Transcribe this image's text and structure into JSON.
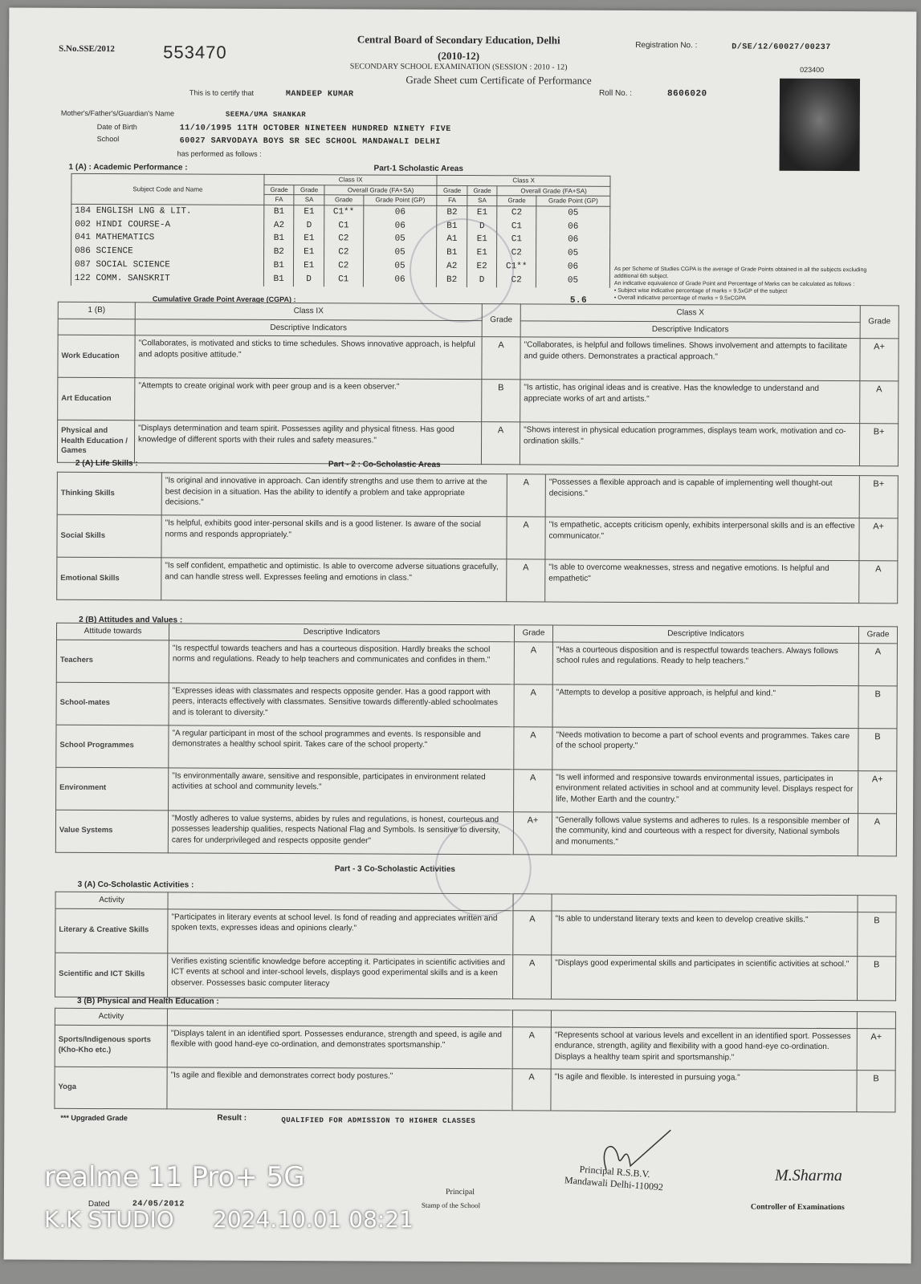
{
  "header": {
    "serial_label": "S.No.SSE/2012",
    "serial_number": "553470",
    "board_name": "Central Board of Secondary Education, Delhi",
    "exam_session_hi": "(2010-12)",
    "exam_name": "SECONDARY SCHOOL EXAMINATION (SESSION : 2010 - 12)",
    "doc_title": "Grade Sheet cum Certificate of Performance",
    "registration_label": "Registration No. :",
    "registration_no": "D/SE/12/60027/00237",
    "small_code": "023400",
    "certify_label": "This is to certify that",
    "student_name": "MANDEEP KUMAR",
    "roll_label": "Roll No. :",
    "roll_no": "8606020",
    "guardian_label": "Mother's/Father's/Guardian's Name",
    "guardian_name": "SEEMA/UMA SHANKAR",
    "dob_label": "Date of Birth",
    "dob": "11/10/1995  11TH OCTOBER NINETEEN HUNDRED NINETY FIVE",
    "school_label": "School",
    "school": "60027  SARVODAYA BOYS SR SEC SCHOOL MANDAWALI DELHI",
    "performed_label": "has performed as follows :"
  },
  "scholastic": {
    "section_label": "1 (A) : Academic Performance :",
    "part_label": "Part-1 Scholastic Areas",
    "subject_header": "Subject Code and Name",
    "class_ix": "Class IX",
    "class_x": "Class X",
    "grade_label": "Grade",
    "fa": "FA",
    "sa": "SA",
    "overall": "Overall Grade (FA+SA)",
    "grade": "Grade",
    "gp": "Grade Point (GP)",
    "rows": [
      {
        "subject": "184 ENGLISH LNG & LIT.",
        "ix": [
          "B1",
          "E1",
          "C1**",
          "06"
        ],
        "x": [
          "B2",
          "E1",
          "C2",
          "05"
        ]
      },
      {
        "subject": "002 HINDI COURSE-A",
        "ix": [
          "A2",
          "D",
          "C1",
          "06"
        ],
        "x": [
          "B1",
          "D",
          "C1",
          "06"
        ]
      },
      {
        "subject": "041 MATHEMATICS",
        "ix": [
          "B1",
          "E1",
          "C2",
          "05"
        ],
        "x": [
          "A1",
          "E1",
          "C1",
          "06"
        ]
      },
      {
        "subject": "086 SCIENCE",
        "ix": [
          "B2",
          "E1",
          "C2",
          "05"
        ],
        "x": [
          "B1",
          "E1",
          "C2",
          "05"
        ]
      },
      {
        "subject": "087 SOCIAL SCIENCE",
        "ix": [
          "B1",
          "E1",
          "C2",
          "05"
        ],
        "x": [
          "A2",
          "E2",
          "C1**",
          "06"
        ]
      },
      {
        "subject": "122 COMM. SANSKRIT",
        "ix": [
          "B1",
          "D",
          "C1",
          "06"
        ],
        "x": [
          "B2",
          "D",
          "C2",
          "05"
        ]
      }
    ],
    "cgpa_label": "Cumulative Grade Point Average (CGPA) :",
    "cgpa": "5.6",
    "notes": [
      "As per Scheme of Studies CGPA is the average of Grade Points obtained in all the subjects excluding additional 6th subject.",
      "An indicative equivalence of Grade Point and Percentage of Marks can be calculated as follows :",
      "• Subject wise indicative percentage of marks = 9.5xGP of the subject",
      "• Overall indicative percentage of marks = 9.5xCGPA"
    ]
  },
  "section1b": {
    "label": "1 (B)",
    "class_ix": "Class IX",
    "class_x": "Class X",
    "desc": "Descriptive Indicators",
    "grade": "Grade",
    "rows": [
      {
        "area": "Work Education",
        "ix": "\"Collaborates, is motivated and sticks to time schedules. Shows innovative approach, is helpful and adopts positive attitude.\"",
        "gix": "A",
        "x": "\"Collaborates, is helpful and follows timelines. Shows involvement and attempts to facilitate and guide others. Demonstrates a practical approach.\"",
        "gx": "A+"
      },
      {
        "area": "Art Education",
        "ix": "\"Attempts to create original work with peer group and is a keen observer.\"",
        "gix": "B",
        "x": "\"Is artistic, has original ideas and is creative. Has the knowledge to understand and appreciate works of art and artists.\"",
        "gx": "A"
      },
      {
        "area": "Physical and Health Education / Games",
        "ix": "\"Displays determination and team spirit. Possesses agility and physical fitness. Has good knowledge of different sports with their rules and safety measures.\"",
        "gix": "A",
        "x": "\"Shows interest in physical education programmes, displays team work, motivation and co-ordination skills.\"",
        "gx": "B+"
      }
    ]
  },
  "part2": {
    "title": "Part - 2 : Co-Scholastic Areas",
    "life_label": "2 (A) Life Skills :",
    "rows": [
      {
        "area": "Thinking Skills",
        "ix": "\"Is original and innovative in approach. Can identify strengths and use them to arrive at the best decision in a situation. Has the ability to identify a problem and take appropriate decisions.\"",
        "gix": "A",
        "x": "\"Possesses a flexible approach and is capable of implementing well thought-out decisions.\"",
        "gx": "B+"
      },
      {
        "area": "Social Skills",
        "ix": "\"Is helpful, exhibits good inter-personal skills and is a good listener. Is aware of the social norms and responds appropriately.\"",
        "gix": "A",
        "x": "\"Is empathetic, accepts criticism openly, exhibits interpersonal skills and is an effective communicator.\"",
        "gx": "A+"
      },
      {
        "area": "Emotional Skills",
        "ix": "\"Is self confident, empathetic and optimistic. Is able to overcome adverse situations gracefully, and can handle stress well. Expresses feeling and emotions in class.\"",
        "gix": "A",
        "x": "\"Is able to overcome weaknesses, stress and negative emotions. Is helpful and empathetic\"",
        "gx": "A"
      }
    ]
  },
  "attitudes": {
    "label": "2 (B) Attitudes and Values :",
    "col_head": "Attitude towards",
    "desc": "Descriptive Indicators",
    "grade": "Grade",
    "rows": [
      {
        "area": "Teachers",
        "ix": "\"Is respectful towards teachers and has a courteous disposition. Hardly breaks the school norms and regulations. Ready to help teachers and communicates and confides in them.\"",
        "gix": "A",
        "x": "\"Has a courteous disposition and is respectful towards teachers. Always follows school rules and regulations. Ready to help teachers.\"",
        "gx": "A"
      },
      {
        "area": "School-mates",
        "ix": "\"Expresses ideas with classmates and respects opposite gender. Has a good rapport with peers, interacts effectively with classmates. Sensitive towards differently-abled schoolmates and is tolerant to diversity.\"",
        "gix": "A",
        "x": "\"Attempts to develop a positive approach, is helpful and kind.\"",
        "gx": "B"
      },
      {
        "area": "School Programmes",
        "ix": "\"A regular participant in most of the school programmes and events. Is responsible and demonstrates a healthy school spirit. Takes care of the school property.\"",
        "gix": "A",
        "x": "\"Needs motivation to become a part of school events and programmes. Takes care of the school property.\"",
        "gx": "B"
      },
      {
        "area": "Environment",
        "ix": "\"Is environmentally aware, sensitive and responsible, participates in environment related activities at school and community levels.\"",
        "gix": "A",
        "x": "\"Is well informed and responsive towards environmental issues, participates in environment related activities in school and at community level. Displays respect for life, Mother Earth and the country.\"",
        "gx": "A+"
      },
      {
        "area": "Value Systems",
        "ix": "\"Mostly adheres to value systems, abides by rules and regulations, is honest, courteous and possesses leadership qualities, respects National Flag and Symbols. Is sensitive to diversity, cares for underprivileged and respects opposite gender\"",
        "gix": "A+",
        "x": "\"Generally follows value systems and adheres to rules. Is a responsible member of the community, kind and courteous with a respect for diversity, National symbols and monuments.\"",
        "gx": "A"
      }
    ]
  },
  "part3": {
    "title": "Part - 3 Co-Scholastic Activities",
    "a_label": "3 (A) Co-Scholastic Activities :",
    "activity": "Activity",
    "a_rows": [
      {
        "area": "Literary & Creative Skills",
        "ix": "\"Participates in literary events at school level. Is fond of reading and appreciates written and spoken texts, expresses ideas and opinions clearly.\"",
        "gix": "A",
        "x": "\"Is able to understand literary texts and keen to develop creative skills.\"",
        "gx": "B"
      },
      {
        "area": "Scientific and ICT Skills",
        "ix": "Verifies existing scientific knowledge before accepting it. Participates in scientific activities and ICT events at school and inter-school levels, displays good experimental skills and is a keen observer. Possesses basic computer literacy",
        "gix": "A",
        "x": "\"Displays good experimental skills and participates in scientific activities at school.\"",
        "gx": "B"
      }
    ],
    "b_label": "3 (B) Physical and Health Education :",
    "b_rows": [
      {
        "area": "Sports/Indigenous sports (Kho-Kho etc.)",
        "ix": "\"Displays talent in an identified sport. Possesses endurance, strength and speed, is agile and flexible with good hand-eye co-ordination, and demonstrates sportsmanship.\"",
        "gix": "A",
        "x": "\"Represents school at various levels and excellent in an identified sport. Possesses endurance, strength, agility and flexibility with a good hand-eye co-ordination. Displays a healthy team spirit and sportsmanship.\"",
        "gx": "A+"
      },
      {
        "area": "Yoga",
        "ix": "\"Is agile and flexible and demonstrates correct body postures.\"",
        "gix": "A",
        "x": "\"Is agile and flexible. Is interested in pursuing yoga.\"",
        "gx": "B"
      }
    ]
  },
  "footer": {
    "upgraded": "*** Upgraded Grade",
    "result_label": "Result :",
    "result": "QUALIFIED FOR ADMISSION TO HIGHER CLASSES",
    "dated_label": "Dated",
    "date": "24/05/2012",
    "principal_label": "Principal",
    "stamp_label": "Stamp of the School",
    "principal_stamp": "Principal R.S.B.V. Mandawali Delhi-110092",
    "signature": "M.Sharma",
    "controller": "Controller of Examinations"
  },
  "watermark": {
    "device": "realme 11 Pro+ 5G",
    "studio": "K.K STUDIO",
    "timestamp": "2024.10.01 08:21"
  }
}
